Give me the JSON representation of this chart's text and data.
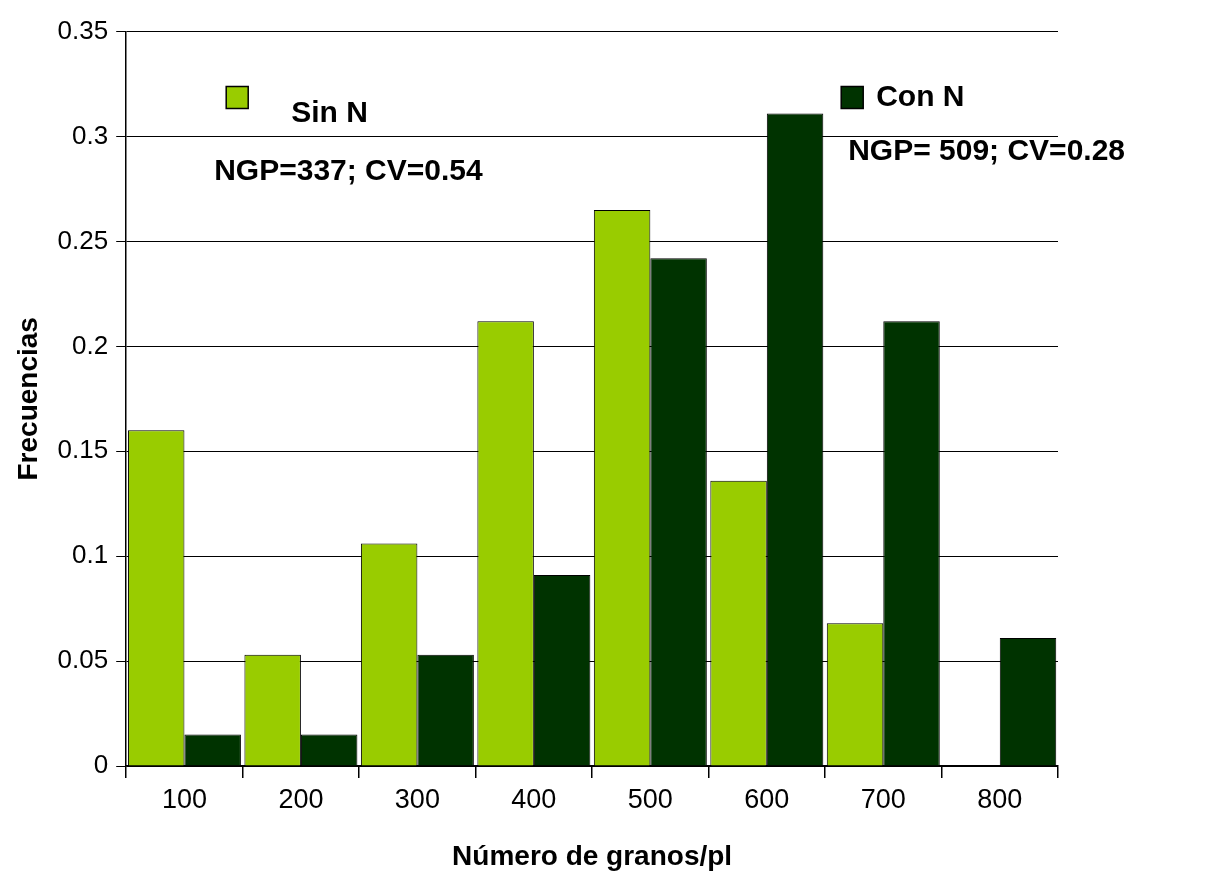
{
  "chart_data": {
    "type": "bar",
    "xlabel": "Número de granos/pl",
    "ylabel": "Frecuencias",
    "categories": [
      "100",
      "200",
      "300",
      "400",
      "500",
      "600",
      "700",
      "800"
    ],
    "series": [
      {
        "name": "Sin N",
        "color": "#99cc00",
        "values": [
          0.16,
          0.053,
          0.106,
          0.212,
          0.265,
          0.136,
          0.068,
          0
        ]
      },
      {
        "name": "Con N",
        "color": "#003300",
        "values": [
          0.015,
          0.015,
          0.053,
          0.091,
          0.242,
          0.311,
          0.212,
          0.061
        ]
      }
    ],
    "ylim": [
      0,
      0.35
    ],
    "yticks": [
      0,
      0.05,
      0.1,
      0.15,
      0.2,
      0.25,
      0.3,
      0.35
    ],
    "grid": "y",
    "legend": "top",
    "annotations": [
      "NGP=337; CV=0.54",
      "NGP= 509; CV=0.28"
    ]
  }
}
